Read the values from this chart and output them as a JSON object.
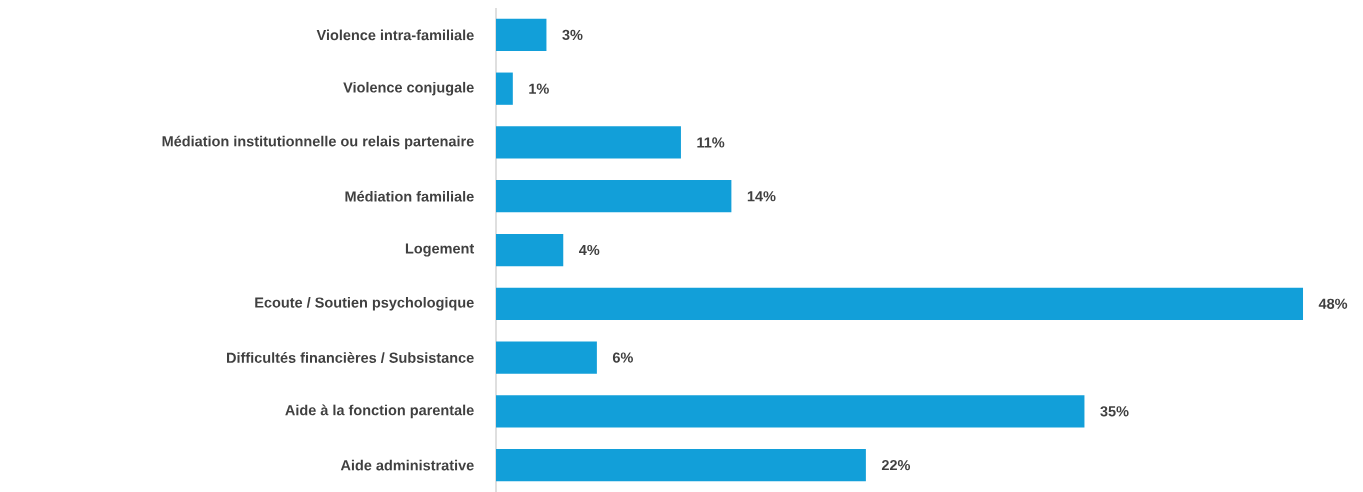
{
  "chart_data": {
    "type": "bar",
    "orientation": "horizontal",
    "categories": [
      "Violence intra-familiale",
      "Violence conjugale",
      "Médiation institutionnelle ou relais partenaire",
      "Médiation familiale",
      "Logement",
      "Ecoute / Soutien psychologique",
      "Difficultés financières / Subsistance",
      "Aide à la fonction parentale",
      "Aide administrative"
    ],
    "values": [
      3,
      1,
      11,
      14,
      4,
      48,
      6,
      35,
      22
    ],
    "value_labels": [
      "3%",
      "1%",
      "11%",
      "14%",
      "4%",
      "48%",
      "6%",
      "35%",
      "22%"
    ],
    "color": "#129fd9"
  }
}
